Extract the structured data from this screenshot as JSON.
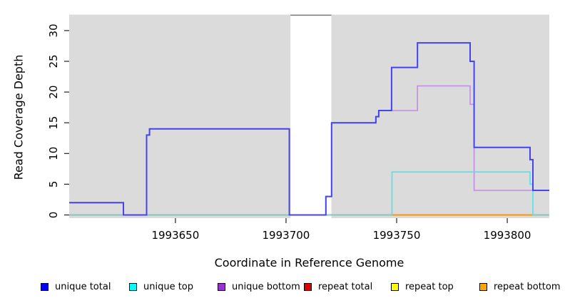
{
  "figure": {
    "xlabel": "Coordinate in Reference Genome",
    "ylabel": "Read Coverage Depth"
  },
  "legend": {
    "items": [
      {
        "label": "unique total",
        "color": "#0000EE"
      },
      {
        "label": "unique top",
        "color": "#00FFFF"
      },
      {
        "label": "unique bottom",
        "color": "#9932CC"
      },
      {
        "label": "repeat total",
        "color": "#DD0000"
      },
      {
        "label": "repeat top",
        "color": "#FFFF00"
      },
      {
        "label": "repeat bottom",
        "color": "#FFA500"
      }
    ]
  },
  "chart_data": {
    "type": "line",
    "subtype": "step",
    "title": "",
    "xlabel": "Coordinate in Reference Genome",
    "ylabel": "Read Coverage Depth",
    "xlim": [
      1993602,
      1993819
    ],
    "ylim": [
      0,
      32.5
    ],
    "x_ticks": [
      1993650,
      1993700,
      1993750,
      1993800
    ],
    "y_ticks": [
      0,
      5,
      10,
      15,
      20,
      25,
      30
    ],
    "grid": false,
    "legend_position": "bottom",
    "panel_color": "#DBDBDB",
    "masked_region": {
      "from": 1993702,
      "to": 1993720.5,
      "border_color": "#808080"
    },
    "series": [
      {
        "name": "repeat total",
        "color": "#DD0000",
        "width": 1.5,
        "steps": [
          [
            1993602,
            0
          ]
        ]
      },
      {
        "name": "repeat top",
        "color": "#7CBE7C",
        "width": 1.5,
        "steps": [
          [
            1993602,
            0
          ]
        ]
      },
      {
        "name": "repeat bottom",
        "color": "#FF9500",
        "width": 2,
        "steps": [
          [
            1993747.9,
            0
          ]
        ],
        "xend": 1993811.6
      },
      {
        "name": "unique bottom",
        "color": "#C18CE4",
        "width": 1.6,
        "steps": [
          [
            1993602,
            2
          ],
          [
            1993626.5,
            0
          ],
          [
            1993637,
            13
          ],
          [
            1993638.3,
            14
          ],
          [
            1993701.5,
            0
          ],
          [
            1993718,
            3
          ],
          [
            1993720.6,
            15
          ],
          [
            1993740.6,
            16
          ],
          [
            1993741.9,
            17
          ],
          [
            1993759.4,
            21
          ],
          [
            1993783.2,
            18
          ],
          [
            1993785,
            4
          ]
        ]
      },
      {
        "name": "unique top",
        "color": "#4FE3EC",
        "width": 1.6,
        "steps": [
          [
            1993602,
            0
          ],
          [
            1993747.9,
            7
          ],
          [
            1993810.3,
            5
          ],
          [
            1993811.6,
            0
          ]
        ]
      },
      {
        "name": "unique total",
        "color": "#4343EF",
        "width": 2,
        "steps": [
          [
            1993602,
            2
          ],
          [
            1993626.5,
            0
          ],
          [
            1993637,
            13
          ],
          [
            1993638.3,
            14
          ],
          [
            1993701.5,
            0
          ],
          [
            1993718,
            3
          ],
          [
            1993720.6,
            15
          ],
          [
            1993740.6,
            16
          ],
          [
            1993741.9,
            17
          ],
          [
            1993747.7,
            24
          ],
          [
            1993759.4,
            28
          ],
          [
            1993783.2,
            25
          ],
          [
            1993785,
            11
          ],
          [
            1993810.3,
            9
          ],
          [
            1993811.6,
            4
          ]
        ]
      }
    ]
  }
}
